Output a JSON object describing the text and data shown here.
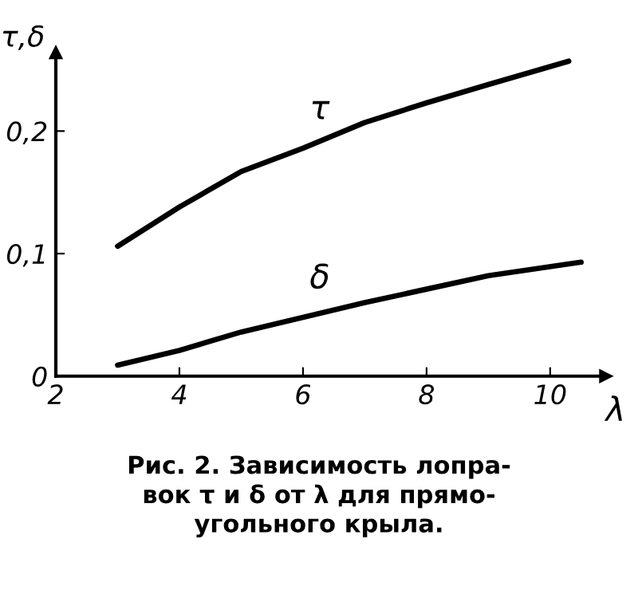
{
  "chart_data": {
    "type": "line",
    "xlabel": "λ",
    "ylabel": "τ,δ",
    "series": [
      {
        "name": "τ",
        "color": "#000000",
        "x": [
          3.0,
          4,
          5,
          6,
          7,
          8,
          9,
          10.3
        ],
        "values": [
          0.106,
          0.138,
          0.167,
          0.186,
          0.207,
          0.223,
          0.238,
          0.257
        ]
      },
      {
        "name": "δ",
        "color": "#000000",
        "x": [
          3.0,
          4,
          5,
          6,
          7,
          8,
          9,
          10.5
        ],
        "values": [
          0.009,
          0.021,
          0.036,
          0.048,
          0.06,
          0.071,
          0.082,
          0.093
        ]
      }
    ],
    "annotations": [
      "Рис. 2. Зависимость лопра-\nвок τ и δ от λ для прямо-\nугольного крыла."
    ],
    "xlim": [
      2,
      10.9
    ],
    "ylim": [
      0,
      0.264
    ],
    "xticks": [
      2,
      4,
      6,
      8,
      10
    ],
    "yticks": [
      0,
      {
        "value": 0.1,
        "label": "0,1"
      },
      {
        "value": 0.2,
        "label": "0,2"
      }
    ],
    "grid": false,
    "legend": false,
    "marker": "none",
    "line_style": "solid"
  }
}
